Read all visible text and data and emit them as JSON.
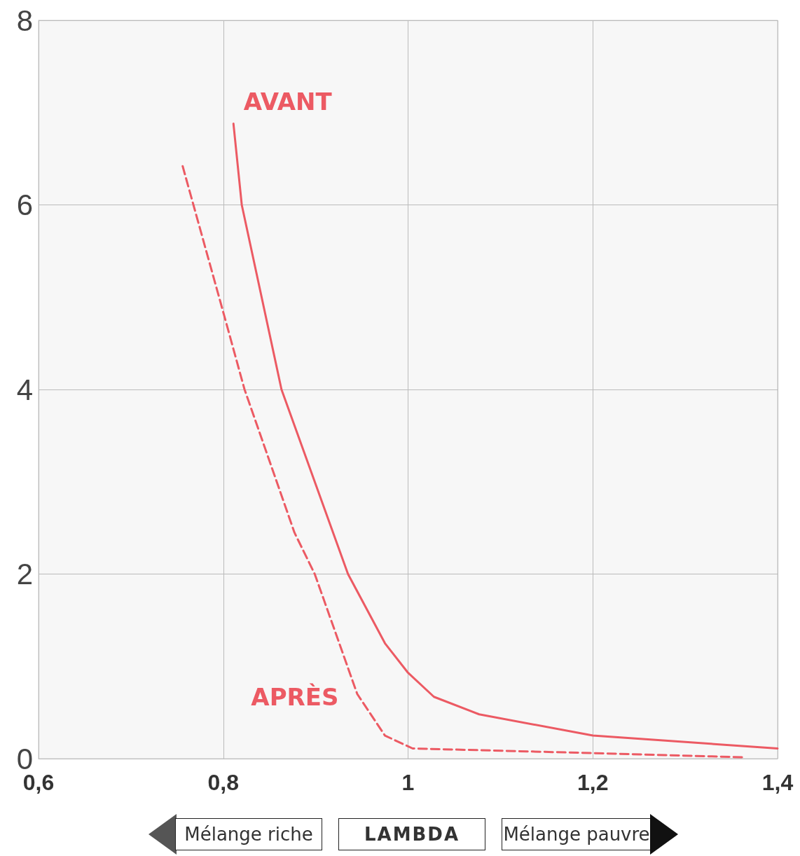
{
  "chart_data": {
    "type": "line",
    "xlabel": "LAMBDA",
    "annotations": [
      "Mélange riche",
      "Mélange pauvre"
    ],
    "xlim": [
      0.6,
      1.4
    ],
    "xticks": [
      {
        "value": 0.6,
        "label": "0,6"
      },
      {
        "value": 0.8,
        "label": "0,8"
      },
      {
        "value": 1,
        "label": "1"
      },
      {
        "value": 1.2,
        "label": "1,2"
      },
      {
        "value": 1.4,
        "label": "1,4"
      }
    ],
    "ylim": [
      0,
      8
    ],
    "yticks": [
      0,
      2,
      4,
      6,
      8
    ],
    "grid": true,
    "marker": "none",
    "legend": false,
    "series": [
      {
        "name": "AVANT",
        "color": "#ec5a63",
        "line_style": "solid",
        "x": [
          0.811,
          0.82,
          0.863,
          0.935,
          0.975,
          1.0,
          1.028,
          1.077,
          1.2,
          1.4
        ],
        "values": [
          6.88,
          6.0,
          4.0,
          2.0,
          1.25,
          0.93,
          0.67,
          0.48,
          0.25,
          0.11
        ]
      },
      {
        "name": "APRÈS",
        "color": "#ec5a63",
        "line_style": "dashed",
        "x": [
          0.756,
          0.801,
          0.823,
          0.877,
          0.899,
          0.945,
          0.975,
          1.005,
          1.2,
          1.362
        ],
        "values": [
          6.42,
          4.8,
          4.0,
          2.45,
          2.0,
          0.7,
          0.25,
          0.11,
          0.06,
          0.015
        ]
      }
    ]
  }
}
